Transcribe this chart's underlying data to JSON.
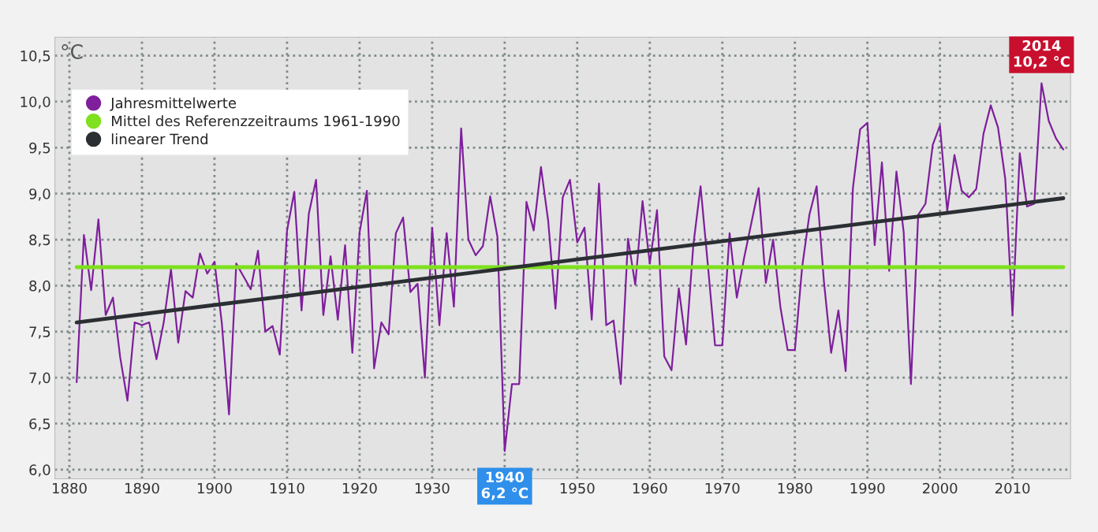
{
  "chart_data": {
    "type": "line",
    "ylabel": "°C",
    "xlim": [
      1878,
      2018
    ],
    "xticks": [
      1880,
      1890,
      1900,
      1910,
      1920,
      1930,
      {
        "value": 1940,
        "label": null
      },
      1950,
      1960,
      1970,
      1980,
      1990,
      2000,
      2010
    ],
    "ylim": [
      5.9,
      10.7
    ],
    "yticks": [
      {
        "value": 6.0,
        "label": "6,0"
      },
      {
        "value": 6.5,
        "label": "6,5"
      },
      {
        "value": 7.0,
        "label": "7,0"
      },
      {
        "value": 7.5,
        "label": "7,5"
      },
      {
        "value": 8.0,
        "label": "8,0"
      },
      {
        "value": 8.5,
        "label": "8,5"
      },
      {
        "value": 9.0,
        "label": "9,0"
      },
      {
        "value": 9.5,
        "label": "9,5"
      },
      {
        "value": 10.0,
        "label": "10,0"
      },
      {
        "value": 10.5,
        "label": "10,5"
      }
    ],
    "grid": true,
    "legend": "top left",
    "marker": "none",
    "line_style": "solid",
    "series": [
      {
        "name": "Jahresmittelwerte",
        "color": "#7e1f9c",
        "x": [
          1881,
          1882,
          1883,
          1884,
          1885,
          1886,
          1887,
          1888,
          1889,
          1890,
          1891,
          1892,
          1893,
          1894,
          1895,
          1896,
          1897,
          1898,
          1899,
          1900,
          1901,
          1902,
          1903,
          1904,
          1905,
          1906,
          1907,
          1908,
          1909,
          1910,
          1911,
          1912,
          1913,
          1914,
          1915,
          1916,
          1917,
          1918,
          1919,
          1920,
          1921,
          1922,
          1923,
          1924,
          1925,
          1926,
          1927,
          1928,
          1929,
          1930,
          1931,
          1932,
          1933,
          1934,
          1935,
          1936,
          1937,
          1938,
          1939,
          1940,
          1941,
          1942,
          1943,
          1944,
          1945,
          1946,
          1947,
          1948,
          1949,
          1950,
          1951,
          1952,
          1953,
          1954,
          1955,
          1956,
          1957,
          1958,
          1959,
          1960,
          1961,
          1962,
          1963,
          1964,
          1965,
          1966,
          1967,
          1968,
          1969,
          1970,
          1971,
          1972,
          1973,
          1974,
          1975,
          1976,
          1977,
          1978,
          1979,
          1980,
          1981,
          1982,
          1983,
          1984,
          1985,
          1986,
          1987,
          1988,
          1989,
          1990,
          1991,
          1992,
          1993,
          1994,
          1995,
          1996,
          1997,
          1998,
          1999,
          2000,
          2001,
          2002,
          2003,
          2004,
          2005,
          2006,
          2007,
          2008,
          2009,
          2010,
          2011,
          2012,
          2013,
          2014,
          2015,
          2016,
          2017
        ],
        "values": [
          6.95,
          8.55,
          7.95,
          8.72,
          7.68,
          7.87,
          7.22,
          6.75,
          7.6,
          7.57,
          7.6,
          7.2,
          7.6,
          8.18,
          7.38,
          7.94,
          7.87,
          8.35,
          8.13,
          8.26,
          7.6,
          6.6,
          8.24,
          8.1,
          7.96,
          8.38,
          7.5,
          7.56,
          7.25,
          8.6,
          9.02,
          7.73,
          8.78,
          9.15,
          7.68,
          8.32,
          7.63,
          8.44,
          7.27,
          8.58,
          9.03,
          7.1,
          7.6,
          7.47,
          8.57,
          8.74,
          7.93,
          8.02,
          7.0,
          8.63,
          7.57,
          8.57,
          7.77,
          9.71,
          8.5,
          8.33,
          8.43,
          8.97,
          8.53,
          6.2,
          6.93,
          6.93,
          8.91,
          8.6,
          9.29,
          8.7,
          7.75,
          8.96,
          9.15,
          8.47,
          8.63,
          7.63,
          9.11,
          7.57,
          7.62,
          6.93,
          8.51,
          8.01,
          8.92,
          8.24,
          8.82,
          7.23,
          7.08,
          7.97,
          7.36,
          8.44,
          9.08,
          8.23,
          7.35,
          7.35,
          8.57,
          7.87,
          8.3,
          8.68,
          9.06,
          8.03,
          8.5,
          7.77,
          7.3,
          7.3,
          8.2,
          8.77,
          9.08,
          8.05,
          7.27,
          7.73,
          7.07,
          9.06,
          9.7,
          9.77,
          8.44,
          9.34,
          8.16,
          9.24,
          8.58,
          6.93,
          8.77,
          8.89,
          9.53,
          9.74,
          8.81,
          9.42,
          9.03,
          8.96,
          9.05,
          9.65,
          9.96,
          9.72,
          9.16,
          7.68,
          9.44,
          8.86,
          8.89,
          10.2,
          9.79,
          9.6,
          9.48
        ]
      },
      {
        "name": "Mittel des Referenzzeitraums 1961-1990",
        "color": "#7ee01e",
        "x": [
          1881,
          2017
        ],
        "values": [
          8.2,
          8.2
        ]
      },
      {
        "name": "linearer Trend",
        "color": "#2b2f33",
        "x": [
          1881,
          2017
        ],
        "values": [
          7.6,
          8.95
        ]
      }
    ],
    "annotations": [
      {
        "text": "2014\n10,2 °C",
        "x": 2014,
        "y": 10.2
      },
      {
        "text": "1940\n6,2 °C",
        "x": 1940,
        "y": 6.2
      }
    ]
  }
}
